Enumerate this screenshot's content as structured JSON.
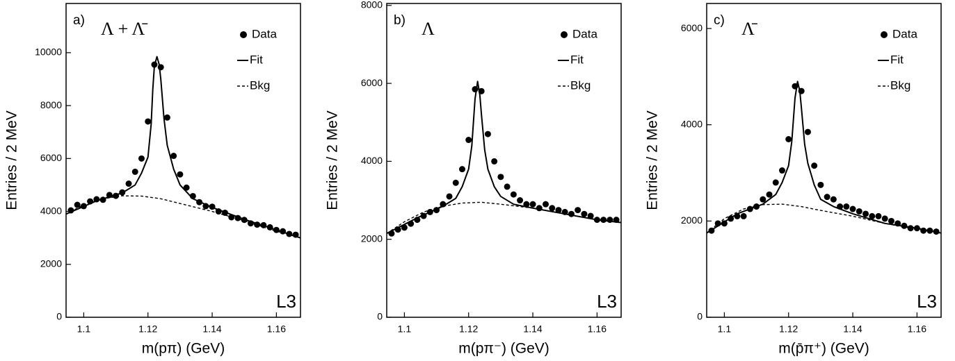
{
  "chart_data": [
    {
      "type": "line",
      "panel_label": "a)",
      "particle": "Λ + Λ̄",
      "experiment": "L3",
      "xlabel": "m(pπ) (GeV)",
      "ylabel": "Entries / 2 MeV",
      "xlim": [
        1.0945,
        1.1675
      ],
      "xticks": [
        1.1,
        1.12,
        1.14,
        1.16
      ],
      "ylim": [
        0,
        11860
      ],
      "yticks": [
        0,
        2000,
        4000,
        6000,
        8000,
        10000
      ],
      "series": [
        {
          "name": "Data",
          "type": "scatter",
          "color": "#000000",
          "x": [
            1.096,
            1.098,
            1.1,
            1.102,
            1.104,
            1.106,
            1.108,
            1.11,
            1.112,
            1.114,
            1.116,
            1.118,
            1.12,
            1.122,
            1.124,
            1.126,
            1.128,
            1.13,
            1.132,
            1.134,
            1.136,
            1.138,
            1.14,
            1.142,
            1.144,
            1.146,
            1.148,
            1.15,
            1.152,
            1.154,
            1.156,
            1.158,
            1.16,
            1.162,
            1.164,
            1.166
          ],
          "values": [
            4040,
            4250,
            4200,
            4380,
            4460,
            4440,
            4620,
            4590,
            4720,
            5050,
            5500,
            6000,
            7400,
            9550,
            9450,
            7550,
            6100,
            5400,
            4900,
            4580,
            4350,
            4200,
            4180,
            4000,
            3950,
            3780,
            3750,
            3680,
            3550,
            3500,
            3480,
            3400,
            3300,
            3250,
            3150,
            3120
          ]
        },
        {
          "name": "Fit",
          "type": "line",
          "style": "solid",
          "color": "#000000",
          "x": [
            1.0945,
            1.104,
            1.112,
            1.116,
            1.118,
            1.12,
            1.121,
            1.1215,
            1.122,
            1.1228,
            1.1235,
            1.124,
            1.125,
            1.126,
            1.128,
            1.13,
            1.134,
            1.14,
            1.15,
            1.16,
            1.1675
          ],
          "values": [
            3900,
            4400,
            4700,
            5000,
            5450,
            6050,
            7300,
            8600,
            9500,
            9850,
            9550,
            9000,
            7500,
            6500,
            5600,
            5000,
            4480,
            4150,
            3700,
            3300,
            3000
          ]
        },
        {
          "name": "Bkg",
          "type": "line",
          "style": "dashed",
          "color": "#000000",
          "x": [
            1.0945,
            1.1,
            1.106,
            1.112,
            1.118,
            1.124,
            1.13,
            1.14,
            1.15,
            1.16,
            1.1675
          ],
          "values": [
            3900,
            4250,
            4480,
            4590,
            4580,
            4480,
            4300,
            4000,
            3650,
            3250,
            3000
          ]
        }
      ]
    },
    {
      "type": "line",
      "panel_label": "b)",
      "particle": "Λ",
      "experiment": "L3",
      "xlabel": "m(pπ⁻) (GeV)",
      "ylabel": "Entries / 2 MeV",
      "xlim": [
        1.0945,
        1.1675
      ],
      "xticks": [
        1.1,
        1.12,
        1.14,
        1.16
      ],
      "ylim": [
        0,
        8050
      ],
      "yticks": [
        0,
        2000,
        4000,
        6000,
        8000
      ],
      "series": [
        {
          "name": "Data",
          "type": "scatter",
          "color": "#000000",
          "x": [
            1.096,
            1.098,
            1.1,
            1.102,
            1.104,
            1.106,
            1.108,
            1.11,
            1.112,
            1.114,
            1.116,
            1.118,
            1.12,
            1.122,
            1.124,
            1.126,
            1.128,
            1.13,
            1.132,
            1.134,
            1.136,
            1.138,
            1.14,
            1.142,
            1.144,
            1.146,
            1.148,
            1.15,
            1.152,
            1.154,
            1.156,
            1.158,
            1.16,
            1.162,
            1.164,
            1.166
          ],
          "values": [
            2150,
            2250,
            2300,
            2400,
            2500,
            2600,
            2700,
            2750,
            2900,
            3100,
            3450,
            3800,
            4550,
            5850,
            5800,
            4700,
            4000,
            3600,
            3350,
            3150,
            3000,
            2900,
            2900,
            2800,
            2900,
            2800,
            2750,
            2700,
            2650,
            2750,
            2650,
            2600,
            2500,
            2500,
            2500,
            2500
          ]
        },
        {
          "name": "Fit",
          "type": "line",
          "style": "solid",
          "color": "#000000",
          "x": [
            1.0945,
            1.104,
            1.112,
            1.116,
            1.118,
            1.12,
            1.121,
            1.1215,
            1.122,
            1.1228,
            1.1235,
            1.124,
            1.125,
            1.126,
            1.128,
            1.13,
            1.134,
            1.14,
            1.15,
            1.16,
            1.1675
          ],
          "values": [
            2150,
            2550,
            2850,
            3050,
            3350,
            3800,
            4400,
            5000,
            5600,
            6050,
            5700,
            5200,
            4300,
            3800,
            3350,
            3100,
            2900,
            2800,
            2650,
            2500,
            2430
          ]
        },
        {
          "name": "Bkg",
          "type": "line",
          "style": "dashed",
          "color": "#000000",
          "x": [
            1.0945,
            1.1,
            1.106,
            1.112,
            1.118,
            1.124,
            1.13,
            1.14,
            1.15,
            1.16,
            1.1675
          ],
          "values": [
            2150,
            2450,
            2700,
            2850,
            2930,
            2950,
            2900,
            2800,
            2650,
            2500,
            2430
          ]
        }
      ]
    },
    {
      "type": "line",
      "panel_label": "c)",
      "particle": "Λ̄",
      "experiment": "L3",
      "xlabel": "m(p̄π⁺) (GeV)",
      "ylabel": "Entries / 2 MeV",
      "xlim": [
        1.0945,
        1.1675
      ],
      "xticks": [
        1.1,
        1.12,
        1.14,
        1.16
      ],
      "ylim": [
        0,
        6520
      ],
      "yticks": [
        0,
        2000,
        4000,
        6000
      ],
      "series": [
        {
          "name": "Data",
          "type": "scatter",
          "color": "#000000",
          "x": [
            1.096,
            1.098,
            1.1,
            1.102,
            1.104,
            1.106,
            1.108,
            1.11,
            1.112,
            1.114,
            1.116,
            1.118,
            1.12,
            1.122,
            1.124,
            1.126,
            1.128,
            1.13,
            1.132,
            1.134,
            1.136,
            1.138,
            1.14,
            1.142,
            1.144,
            1.146,
            1.148,
            1.15,
            1.152,
            1.154,
            1.156,
            1.158,
            1.16,
            1.162,
            1.164,
            1.166
          ],
          "values": [
            1800,
            1950,
            1950,
            2050,
            2100,
            2100,
            2250,
            2300,
            2450,
            2550,
            2800,
            3050,
            3700,
            4800,
            4700,
            3850,
            3150,
            2750,
            2500,
            2450,
            2300,
            2300,
            2250,
            2200,
            2150,
            2100,
            2100,
            2050,
            2000,
            1950,
            1900,
            1850,
            1850,
            1800,
            1800,
            1780
          ]
        },
        {
          "name": "Fit",
          "type": "line",
          "style": "solid",
          "color": "#000000",
          "x": [
            1.0945,
            1.104,
            1.112,
            1.116,
            1.118,
            1.12,
            1.121,
            1.1215,
            1.122,
            1.1228,
            1.1235,
            1.124,
            1.125,
            1.126,
            1.128,
            1.13,
            1.134,
            1.14,
            1.15,
            1.16,
            1.1675
          ],
          "values": [
            1750,
            2150,
            2350,
            2550,
            2800,
            3150,
            3650,
            4100,
            4550,
            4900,
            4700,
            4350,
            3600,
            3200,
            2750,
            2450,
            2300,
            2150,
            1950,
            1850,
            1750
          ]
        },
        {
          "name": "Bkg",
          "type": "line",
          "style": "dashed",
          "color": "#000000",
          "x": [
            1.0945,
            1.1,
            1.106,
            1.112,
            1.118,
            1.124,
            1.13,
            1.14,
            1.15,
            1.16,
            1.1675
          ],
          "values": [
            1750,
            2050,
            2250,
            2340,
            2350,
            2300,
            2220,
            2100,
            1950,
            1830,
            1750
          ]
        }
      ]
    }
  ]
}
